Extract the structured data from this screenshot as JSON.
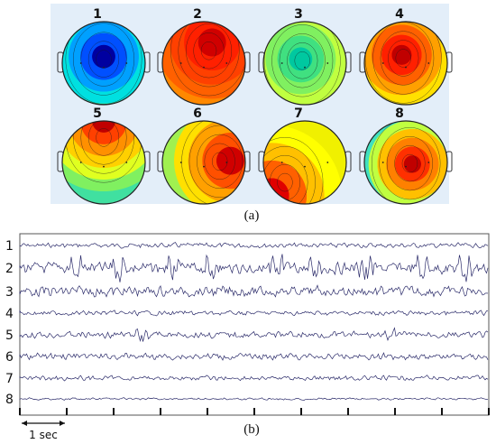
{
  "panel_a": {
    "caption": "(a)",
    "maps": [
      {
        "label": "1",
        "colors": [
          "#0000a0",
          "#0050ff",
          "#00a0ff",
          "#00e0e0",
          "#40f0a0",
          "#a0ff40"
        ],
        "bg": "#60e8a0",
        "focus": [
          0.5,
          0.42
        ]
      },
      {
        "label": "2",
        "colors": [
          "#d00000",
          "#ff2000",
          "#ff4000",
          "#ff6000",
          "#ff8800"
        ],
        "bg": "#ff2a00",
        "focus": [
          0.6,
          0.25
        ]
      },
      {
        "label": "3",
        "colors": [
          "#00c8a0",
          "#40e080",
          "#80f060",
          "#c0ff40",
          "#ffe000",
          "#ffa000"
        ],
        "bg": "#a0f050",
        "focus": [
          0.45,
          0.45
        ]
      },
      {
        "label": "4",
        "colors": [
          "#c00000",
          "#ff2000",
          "#ff6000",
          "#ffa000",
          "#ffe000",
          "#a0ff40",
          "#40e0a0"
        ],
        "bg": "#80f060",
        "focus": [
          0.45,
          0.4
        ]
      },
      {
        "label": "5",
        "colors": [
          "#c00000",
          "#ff4000",
          "#ff9000",
          "#ffd000",
          "#e0ff20",
          "#80f060"
        ],
        "bg": "#40e0a0",
        "focus": [
          0.5,
          0.0
        ]
      },
      {
        "label": "6",
        "colors": [
          "#d00000",
          "#ff5000",
          "#ffa000",
          "#ffe000",
          "#a0f050"
        ],
        "bg": "#50e8a0",
        "focus": [
          0.82,
          0.48
        ]
      },
      {
        "label": "7",
        "colors": [
          "#e00000",
          "#ff6000",
          "#ffc000",
          "#ffff00"
        ],
        "bg": "#f0f000",
        "focus": [
          0.1,
          0.9
        ]
      },
      {
        "label": "8",
        "colors": [
          "#c00000",
          "#ff3000",
          "#ff8000",
          "#ffc000",
          "#c0ff40",
          "#40e0c0",
          "#0080ff",
          "#0000a0"
        ],
        "bg": "#60e8a0",
        "focus": [
          0.58,
          0.52
        ]
      }
    ]
  },
  "panel_b": {
    "caption": "(b)",
    "scale_label": "1 sec",
    "trace_color": "#2b2b6a",
    "channels": [
      {
        "label": "1",
        "amp": 2.5,
        "spikes": []
      },
      {
        "label": "2",
        "amp": 6.0,
        "spikes": [
          0.12,
          0.21,
          0.33,
          0.41,
          0.55,
          0.63,
          0.74,
          0.86,
          0.95
        ]
      },
      {
        "label": "3",
        "amp": 5.5,
        "spikes": []
      },
      {
        "label": "4",
        "amp": 2.5,
        "spikes": []
      },
      {
        "label": "5",
        "amp": 3.5,
        "spikes": [
          0.26,
          0.79
        ]
      },
      {
        "label": "6",
        "amp": 3.5,
        "spikes": []
      },
      {
        "label": "7",
        "amp": 2.5,
        "spikes": []
      },
      {
        "label": "8",
        "amp": 1.2,
        "spikes": []
      }
    ]
  }
}
